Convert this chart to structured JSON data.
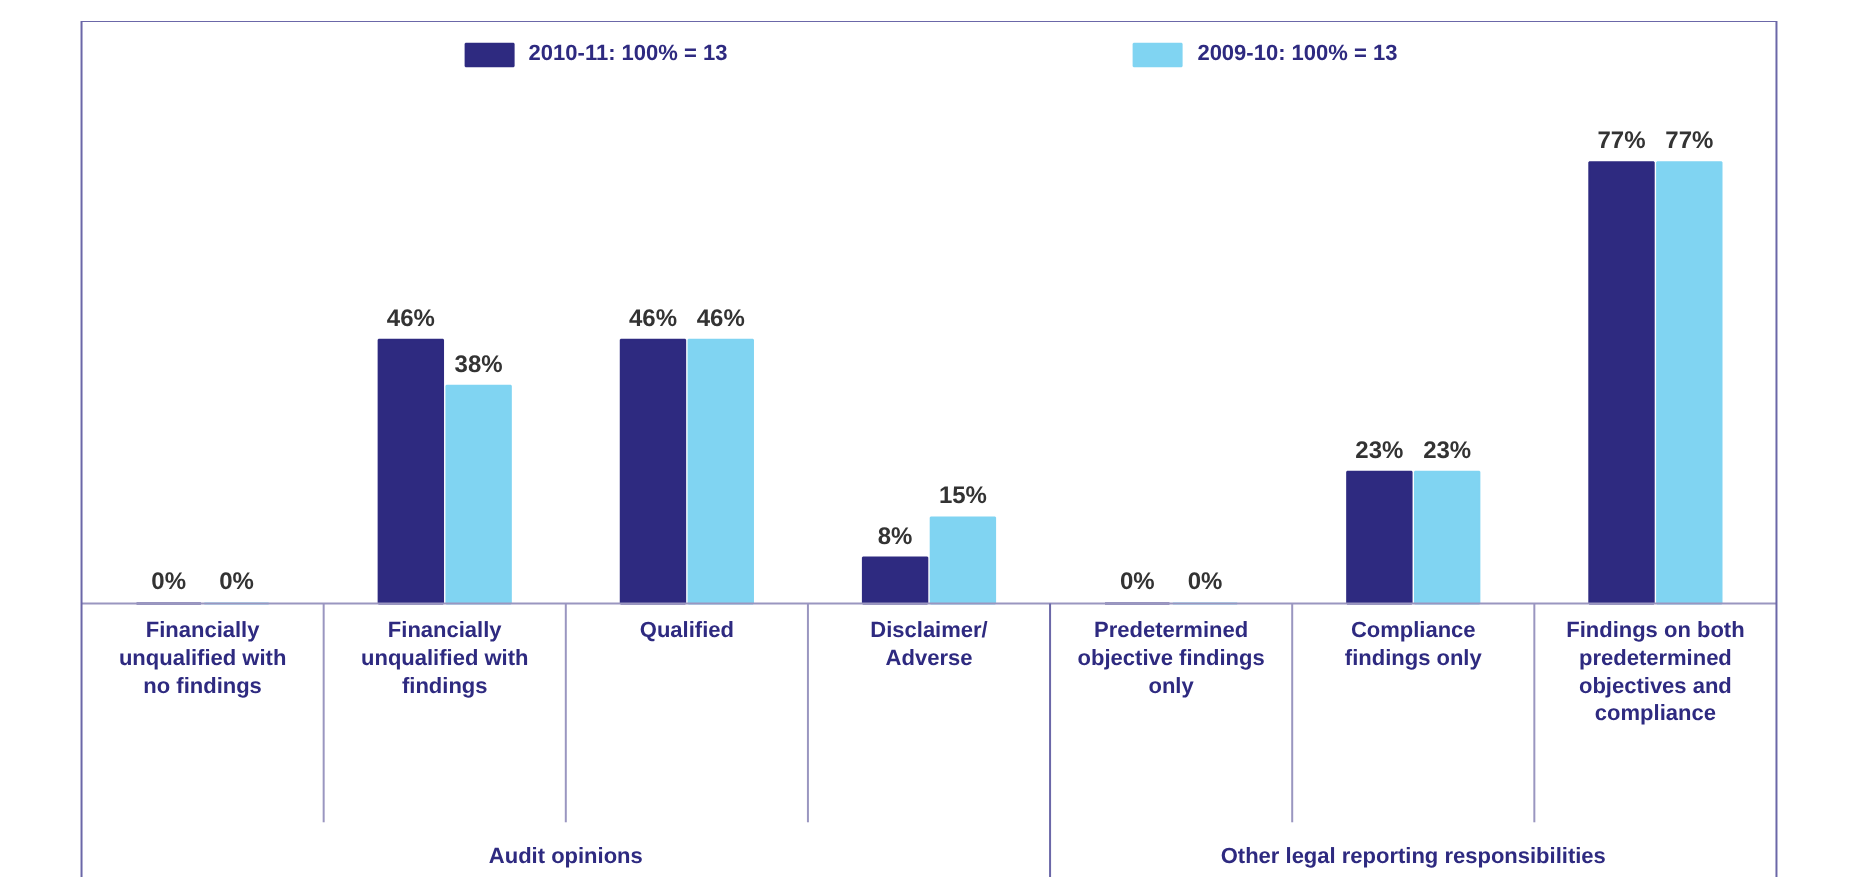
{
  "chart_data": {
    "type": "bar",
    "categories": [
      "Financially\nunqualified with\nno findings",
      "Financially\nunqualified with\nfindings",
      "Qualified",
      "Disclaimer/\nAdverse",
      "Predetermined\nobjective findings\nonly",
      "Compliance\nfindings only",
      "Findings on both\npredetermined\nobjectives and\ncompliance"
    ],
    "series": [
      {
        "name": "2010-11: 100% = 13",
        "color": "#2e2a80",
        "values": [
          0,
          46,
          46,
          8,
          0,
          23,
          77
        ],
        "value_labels": [
          "0%",
          "46%",
          "46%",
          "8%",
          "0%",
          "23%",
          "77%"
        ]
      },
      {
        "name": "2009-10: 100% = 13",
        "color": "#80d4f2",
        "values": [
          0,
          38,
          46,
          15,
          0,
          23,
          77
        ],
        "value_labels": [
          "0%",
          "38%",
          "46%",
          "15%",
          "0%",
          "23%",
          "77%"
        ]
      }
    ],
    "legend": "top",
    "annotations": [
      "Audit opinions",
      "Other legal reporting responsibilities"
    ]
  }
}
